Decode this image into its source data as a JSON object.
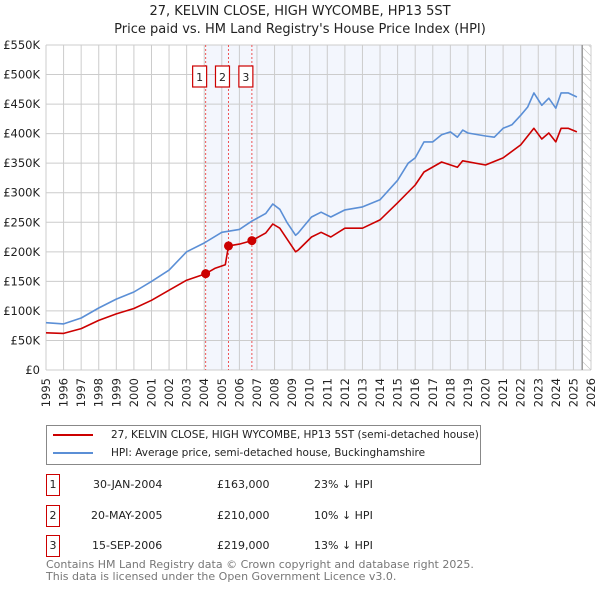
{
  "title": "27, KELVIN CLOSE, HIGH WYCOMBE, HP13 5ST",
  "subtitle": "Price paid vs. HM Land Registry's House Price Index (HPI)",
  "chart_data": {
    "type": "line",
    "title": "27, KELVIN CLOSE, HIGH WYCOMBE, HP13 5ST",
    "subtitle": "Price paid vs. HM Land Registry's House Price Index (HPI)",
    "xlabel": "",
    "ylabel": "",
    "xlim": [
      1995,
      2026
    ],
    "ylim": [
      0,
      550000
    ],
    "x_ticks": [
      "1995",
      "1996",
      "1997",
      "1998",
      "1999",
      "2000",
      "2001",
      "2002",
      "2003",
      "2004",
      "2005",
      "2006",
      "2007",
      "2008",
      "2009",
      "2010",
      "2011",
      "2012",
      "2013",
      "2014",
      "2015",
      "2016",
      "2017",
      "2018",
      "2019",
      "2020",
      "2021",
      "2022",
      "2023",
      "2024",
      "2025",
      "2026"
    ],
    "y_ticks": [
      {
        "value": 0,
        "label": "£0"
      },
      {
        "value": 50000,
        "label": "£50K"
      },
      {
        "value": 100000,
        "label": "£100K"
      },
      {
        "value": 150000,
        "label": "£150K"
      },
      {
        "value": 200000,
        "label": "£200K"
      },
      {
        "value": 250000,
        "label": "£250K"
      },
      {
        "value": 300000,
        "label": "£300K"
      },
      {
        "value": 350000,
        "label": "£350K"
      },
      {
        "value": 400000,
        "label": "£400K"
      },
      {
        "value": 450000,
        "label": "£450K"
      },
      {
        "value": 500000,
        "label": "£500K"
      },
      {
        "value": 550000,
        "label": "£550K"
      }
    ],
    "grid": true,
    "legend_position": "below",
    "series": [
      {
        "name": "27, KELVIN CLOSE, HIGH WYCOMBE, HP13 5ST (semi-detached house)",
        "color": "#cc0000",
        "x": [
          1995,
          1996,
          1997,
          1998,
          1999,
          2000,
          2001,
          2002,
          2003,
          2004.08,
          2004.6,
          2005.2,
          2005.38,
          2006,
          2006.71,
          2007.5,
          2007.9,
          2008.3,
          2008.7,
          2009.2,
          2009.35,
          2010.1,
          2010.65,
          2011.2,
          2012,
          2013,
          2014,
          2015,
          2016,
          2016.5,
          2017.5,
          2018.4,
          2018.7,
          2020,
          2021,
          2022,
          2022.75,
          2023.2,
          2023.6,
          2024,
          2024.3,
          2024.7,
          2025.2
        ],
        "y": [
          63000,
          62000,
          70000,
          84000,
          95000,
          104000,
          118000,
          135000,
          152000,
          163000,
          172000,
          178000,
          210000,
          213000,
          219000,
          232000,
          247000,
          240000,
          222000,
          200000,
          203000,
          225000,
          233000,
          225000,
          240000,
          240000,
          254000,
          283000,
          313000,
          335000,
          352000,
          343000,
          354000,
          347000,
          359000,
          381000,
          409000,
          391000,
          401000,
          386000,
          409000,
          409000,
          403000
        ]
      },
      {
        "name": "HPI: Average price, semi-detached house, Buckinghamshire",
        "color": "#5b8fd6",
        "x": [
          1995,
          1996,
          1997,
          1998,
          1999,
          2000,
          2001,
          2002,
          2003,
          2004,
          2005,
          2006,
          2006.71,
          2007.5,
          2007.9,
          2008.3,
          2008.7,
          2009.2,
          2009.35,
          2010.1,
          2010.65,
          2011.2,
          2012,
          2013,
          2014,
          2015,
          2015.6,
          2016,
          2016.5,
          2017,
          2017.5,
          2018,
          2018.4,
          2018.7,
          2019,
          2020,
          2020.5,
          2021,
          2021.5,
          2022,
          2022.4,
          2022.75,
          2023.2,
          2023.6,
          2024,
          2024.3,
          2024.7,
          2025.2
        ],
        "y": [
          80000,
          78000,
          88000,
          105000,
          120000,
          132000,
          150000,
          169000,
          200000,
          215000,
          233000,
          238000,
          252000,
          265000,
          281000,
          272000,
          250000,
          228000,
          232000,
          259000,
          267000,
          259000,
          271000,
          276000,
          288000,
          321000,
          350000,
          359000,
          386000,
          386000,
          398000,
          403000,
          394000,
          406000,
          401000,
          396000,
          394000,
          409000,
          415000,
          431000,
          445000,
          469000,
          448000,
          460000,
          443000,
          469000,
          469000,
          462000
        ]
      }
    ],
    "annotations": [
      {
        "label": "1",
        "x": 2004.08,
        "y": 163000
      },
      {
        "label": "2",
        "x": 2005.38,
        "y": 210000
      },
      {
        "label": "3",
        "x": 2006.71,
        "y": 219000
      }
    ]
  },
  "legend": [
    {
      "label": "27, KELVIN CLOSE, HIGH WYCOMBE, HP13 5ST (semi-detached house)",
      "color": "#cc0000"
    },
    {
      "label": "HPI: Average price, semi-detached house, Buckinghamshire",
      "color": "#5b8fd6"
    }
  ],
  "sales": [
    {
      "num": "1",
      "date": "30-JAN-2004",
      "price": "£163,000",
      "hpi": "23% ↓ HPI"
    },
    {
      "num": "2",
      "date": "20-MAY-2005",
      "price": "£210,000",
      "hpi": "10% ↓ HPI"
    },
    {
      "num": "3",
      "date": "15-SEP-2006",
      "price": "£219,000",
      "hpi": "13% ↓ HPI"
    }
  ],
  "footer": {
    "line1": "Contains HM Land Registry data © Crown copyright and database right 2025.",
    "line2": "This data is licensed under the Open Government Licence v3.0."
  }
}
